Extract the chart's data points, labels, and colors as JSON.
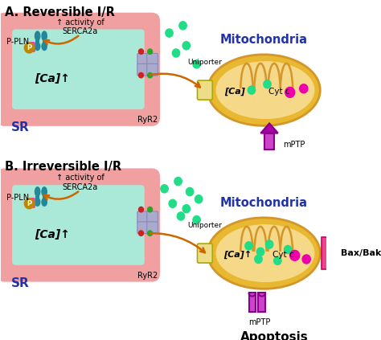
{
  "title_a": "A. Reversible I/R",
  "title_b": "B. Irreversible I/R",
  "sr_label": "SR",
  "mito_label_a": "Mitochondria",
  "mito_label_b": "Mitochondria",
  "ca_label_sr_a": "[Ca]↑",
  "ca_label_sr_b": "[Ca]↑",
  "ca_label_mito_a": "[Ca]",
  "ca_label_mito_b": "[Ca]↑",
  "cytc_label": "Cyt c",
  "mptp_label": "mPTP",
  "uniporter_label": "Uniporter",
  "ryr2_label": "RyR2",
  "ppln_label": "P-PLN",
  "serca_label": "↑ activity of\nSERCA2a",
  "baxbak_label": "Bax/Bak",
  "apoptosis_label": "Apoptosis",
  "color_sr_outer": "#f0a0a0",
  "color_sr_inner": "#aae8d8",
  "color_mito_outer": "#e8b830",
  "color_mito_inner": "#f5d888",
  "color_ca_dots": "#22dd88",
  "color_cytc": "#ee00aa",
  "color_pln": "#ee44aa",
  "color_serca": "#228899",
  "color_ryr2": "#aaaacc",
  "color_mptp_body": "#cc44cc",
  "color_mptp_outline": "#880088",
  "color_mptp_arrow": "#aa00aa",
  "color_uniporter": "#eedd88",
  "color_arrow": "#cc6600",
  "color_blue_text": "#2233aa",
  "color_p_circle": "#bb8800",
  "color_baxbak": "#ee4488",
  "background": "#ffffff",
  "color_cristae": "#d4962a"
}
